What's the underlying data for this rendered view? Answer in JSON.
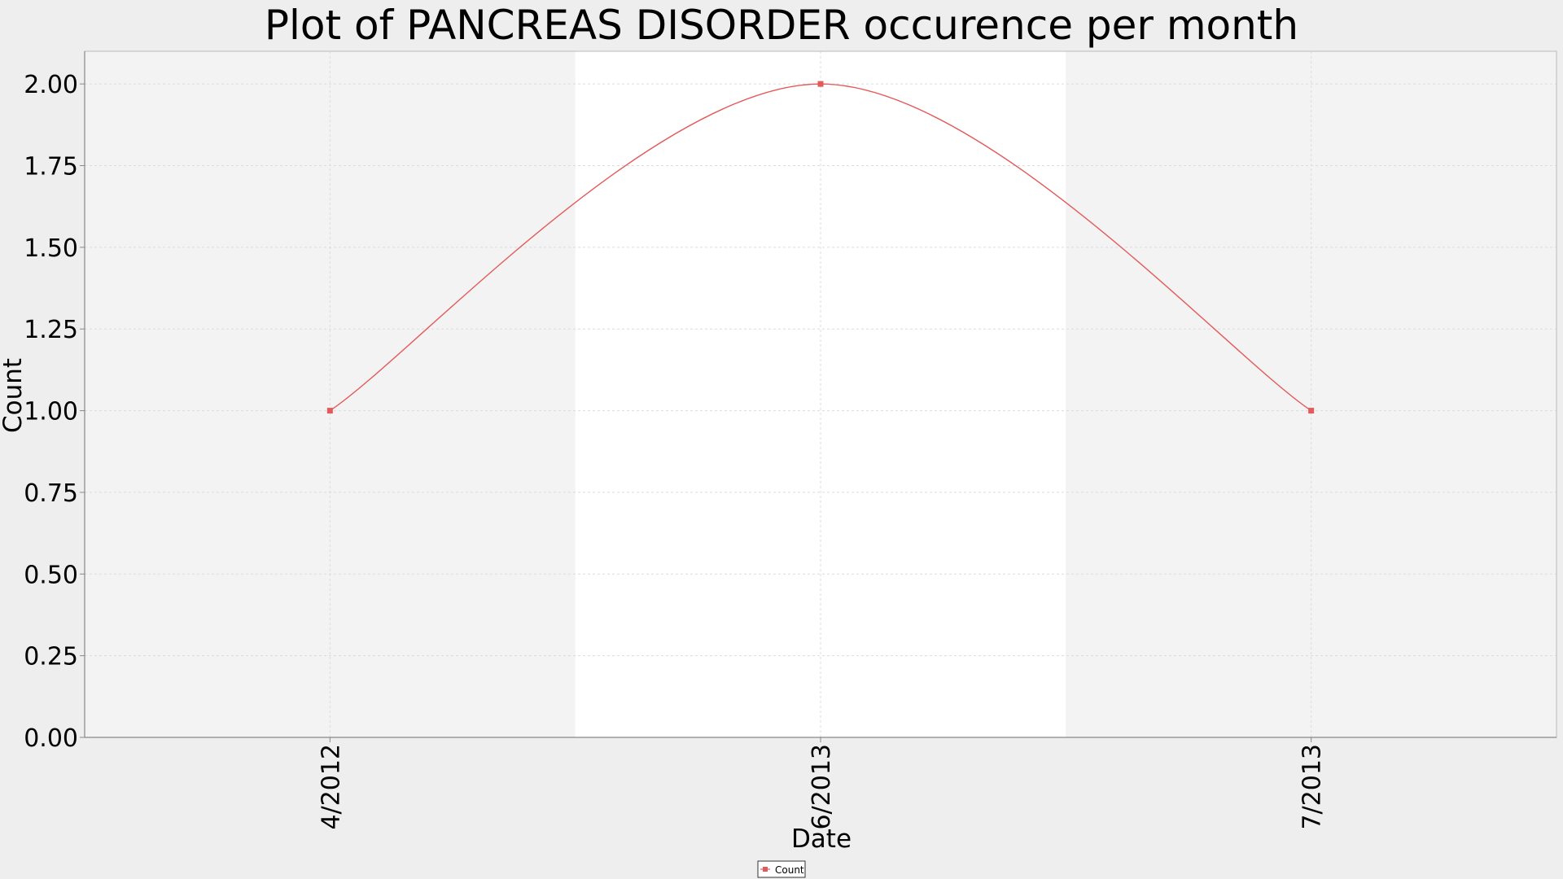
{
  "chart_data": {
    "type": "line",
    "title": "Plot of PANCREAS DISORDER occurence per month",
    "xlabel": "Date",
    "ylabel": "Count",
    "categories": [
      "4/2012",
      "6/2013",
      "7/2013"
    ],
    "series": [
      {
        "name": "Count",
        "values": [
          1,
          2,
          1
        ]
      }
    ],
    "ylim": [
      0,
      2.1
    ],
    "yticks": [
      "0.00",
      "0.25",
      "0.50",
      "0.75",
      "1.00",
      "1.25",
      "1.50",
      "1.75",
      "2.00"
    ],
    "grid": true,
    "legend": "bottom-center",
    "colors": {
      "series": "#e35a5a",
      "plot_band_light": "#f3f3f3",
      "plot_band_white": "#ffffff",
      "page_background": "#eeeeee",
      "grid": "#dcdcdc",
      "axis": "#888888"
    }
  }
}
